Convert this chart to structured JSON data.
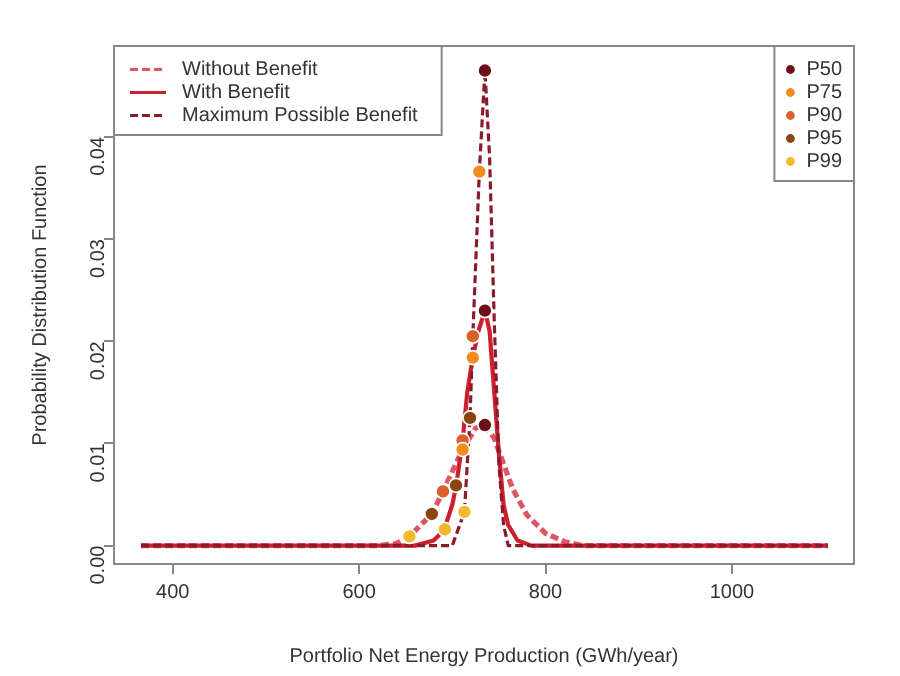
{
  "chart_data": {
    "type": "line",
    "xlabel": "Portfolio Net Energy Production (GWh/year)",
    "ylabel": "Probability Distribution Function",
    "xlim": [
      337,
      1131
    ],
    "xticks": [
      400,
      600,
      800,
      1000
    ],
    "ylim": [
      -0.0018,
      0.0489
    ],
    "yticks": [
      {
        "value": 0,
        "label": "0.00"
      },
      {
        "value": 0.01,
        "label": "0.01"
      },
      {
        "value": 0.02,
        "label": "0.02"
      },
      {
        "value": 0.03,
        "label": "0.03"
      },
      {
        "value": 0.04,
        "label": "0.04"
      }
    ],
    "grid": false,
    "legend": "top left",
    "series": [
      {
        "name": "Without Benefit",
        "type": "line",
        "color": "#e05563",
        "line_style": "dashed",
        "marker": "none",
        "x": [
          366,
          620,
          640,
          654,
          678,
          690,
          711,
          725,
          735,
          745,
          755,
          765,
          780,
          800,
          820,
          840,
          1103
        ],
        "values": [
          0,
          0,
          0.0002,
          0.0009,
          0.0031,
          0.0053,
          0.0094,
          0.0115,
          0.0118,
          0.0105,
          0.008,
          0.0055,
          0.003,
          0.0012,
          0.0004,
          0,
          0
        ]
      },
      {
        "name": "With Benefit",
        "type": "line",
        "color": "#cc1f30",
        "line_style": "solid",
        "marker": "none",
        "x": [
          366,
          660,
          680,
          691,
          700,
          704,
          711,
          716,
          722,
          728,
          735,
          740,
          745,
          750,
          755,
          760,
          770,
          785,
          1103
        ],
        "values": [
          0,
          0,
          0.0005,
          0.0015,
          0.004,
          0.0058,
          0.0102,
          0.015,
          0.0184,
          0.021,
          0.023,
          0.021,
          0.015,
          0.009,
          0.004,
          0.002,
          0.0005,
          0,
          0
        ]
      },
      {
        "name": "Maximum Possible Benefit",
        "type": "line",
        "color": "#8b1a2b",
        "line_style": "dashed",
        "marker": "none",
        "x": [
          366,
          700,
          713,
          719,
          722,
          729,
          735,
          740,
          745,
          750,
          755,
          760,
          1103
        ],
        "values": [
          0,
          0,
          0.0033,
          0.0125,
          0.0205,
          0.0366,
          0.0465,
          0.038,
          0.022,
          0.008,
          0.002,
          0,
          0
        ]
      },
      {
        "name": "P50",
        "type": "scatter",
        "color": "#6b0f1a",
        "marker": "circle",
        "x": [
          735,
          735,
          735
        ],
        "values": [
          0.0465,
          0.023,
          0.0118
        ]
      },
      {
        "name": "P75",
        "type": "scatter",
        "color": "#f28c1e",
        "marker": "circle",
        "x": [
          729,
          722,
          711
        ],
        "values": [
          0.0366,
          0.0184,
          0.0094
        ]
      },
      {
        "name": "P90",
        "type": "scatter",
        "color": "#d9622b",
        "marker": "circle",
        "x": [
          722,
          711,
          690
        ],
        "values": [
          0.0205,
          0.0103,
          0.0053
        ]
      },
      {
        "name": "P95",
        "type": "scatter",
        "color": "#8b4513",
        "marker": "circle",
        "x": [
          719,
          704,
          678
        ],
        "values": [
          0.0125,
          0.0059,
          0.0031
        ]
      },
      {
        "name": "P99",
        "type": "scatter",
        "color": "#f5b82e",
        "marker": "circle",
        "x": [
          713,
          692,
          654
        ],
        "values": [
          0.0033,
          0.0016,
          0.0009
        ]
      }
    ]
  }
}
